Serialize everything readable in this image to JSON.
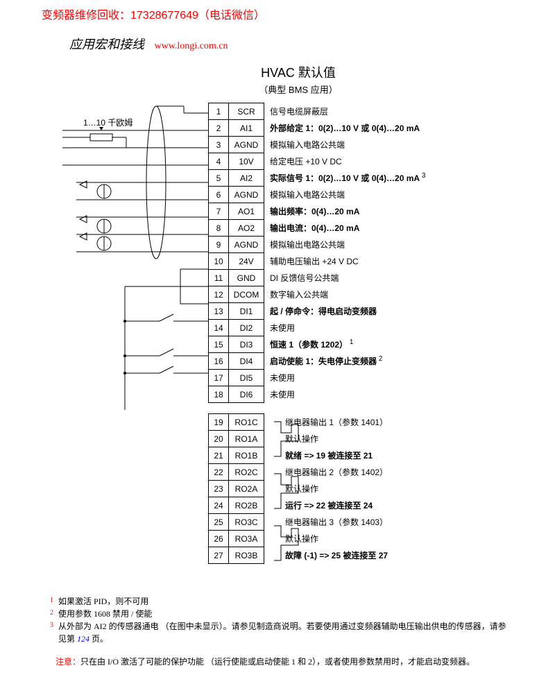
{
  "header": {
    "contact": "变频器维修回收：17328677649（电话微信）",
    "section": "应用宏和接线",
    "url": "www.longi.com.cn",
    "title": "HVAC 默认值",
    "subtitle": "（典型 BMS 应用）"
  },
  "ohm": "1…10 千欧姆",
  "terminals1": [
    {
      "n": "1",
      "l": "SCR",
      "d": "信号电缆屏蔽层"
    },
    {
      "n": "2",
      "l": "AI1",
      "d": "外部给定 1：0(2)…10 V 或 0(4)…20 mA",
      "bold": true
    },
    {
      "n": "3",
      "l": "AGND",
      "d": "模拟输入电路公共端"
    },
    {
      "n": "4",
      "l": "10V",
      "d": "给定电压 +10 V DC"
    },
    {
      "n": "5",
      "l": "AI2",
      "d": "实际信号 1：0(2)…10 V 或 0(4)…20 mA",
      "bold": true,
      "sup": "3"
    },
    {
      "n": "6",
      "l": "AGND",
      "d": "模拟输入电路公共端"
    },
    {
      "n": "7",
      "l": "AO1",
      "d": "输出频率：0(4)…20 mA",
      "bold": true
    },
    {
      "n": "8",
      "l": "AO2",
      "d": "输出电流：0(4)…20 mA",
      "bold": true
    },
    {
      "n": "9",
      "l": "AGND",
      "d": "模拟输出电路公共端"
    },
    {
      "n": "10",
      "l": "24V",
      "d": "辅助电压输出 +24 V DC"
    },
    {
      "n": "11",
      "l": "GND",
      "d": "DI 反馈信号公共端"
    },
    {
      "n": "12",
      "l": "DCOM",
      "d": "数字输入公共端"
    },
    {
      "n": "13",
      "l": "DI1",
      "d": "起 / 停命令：得电启动变频器",
      "bold": true
    },
    {
      "n": "14",
      "l": "DI2",
      "d": "未使用"
    },
    {
      "n": "15",
      "l": "DI3",
      "d": "恒速 1（参数 1202）",
      "bold": true,
      "sup": "1"
    },
    {
      "n": "16",
      "l": "DI4",
      "d": "启动使能 1：失电停止变频器",
      "bold": true,
      "sup": "2"
    },
    {
      "n": "17",
      "l": "DI5",
      "d": "未使用"
    },
    {
      "n": "18",
      "l": "DI6",
      "d": "未使用"
    }
  ],
  "terminals2": [
    {
      "n": "19",
      "l": "RO1C",
      "d": "继电器输出 1（参数 1401）"
    },
    {
      "n": "20",
      "l": "RO1A",
      "d": "默认操作"
    },
    {
      "n": "21",
      "l": "RO1B",
      "d": "就绪 => 19 被连接至 21",
      "bold": true
    },
    {
      "n": "22",
      "l": "RO2C",
      "d": "继电器输出 2（参数 1402）"
    },
    {
      "n": "23",
      "l": "RO2A",
      "d": "默认操作"
    },
    {
      "n": "24",
      "l": "RO2B",
      "d": "运行 => 22 被连接至 24",
      "bold": true
    },
    {
      "n": "25",
      "l": "RO3C",
      "d": "继电器输出 3（参数 1403）"
    },
    {
      "n": "26",
      "l": "RO3A",
      "d": "默认操作"
    },
    {
      "n": "27",
      "l": "RO3B",
      "d": "故障 (-1) => 25 被连接至 27",
      "bold": true
    }
  ],
  "footnotes": {
    "f1": "如果激活 PID，则不可用",
    "f2": "使用参数 1608 禁用 / 使能",
    "f3a": "从外部为 AI2 的传感器通电 （在图中未显示）。请参见制造商说明。若要使用通过变频器辅助电压输出供电的传感器，请参见第",
    "f3page": "124",
    "f3b": "页。"
  },
  "attention": {
    "label": "注意：",
    "text": "只在由 I/O 激活了可能的保护功能 （运行使能或启动使能 1 和 2），或者使用参数禁用时，才能启动变频器。"
  },
  "colors": {
    "red": "#ff0000",
    "blue": "#0000ff",
    "black": "#000000"
  }
}
